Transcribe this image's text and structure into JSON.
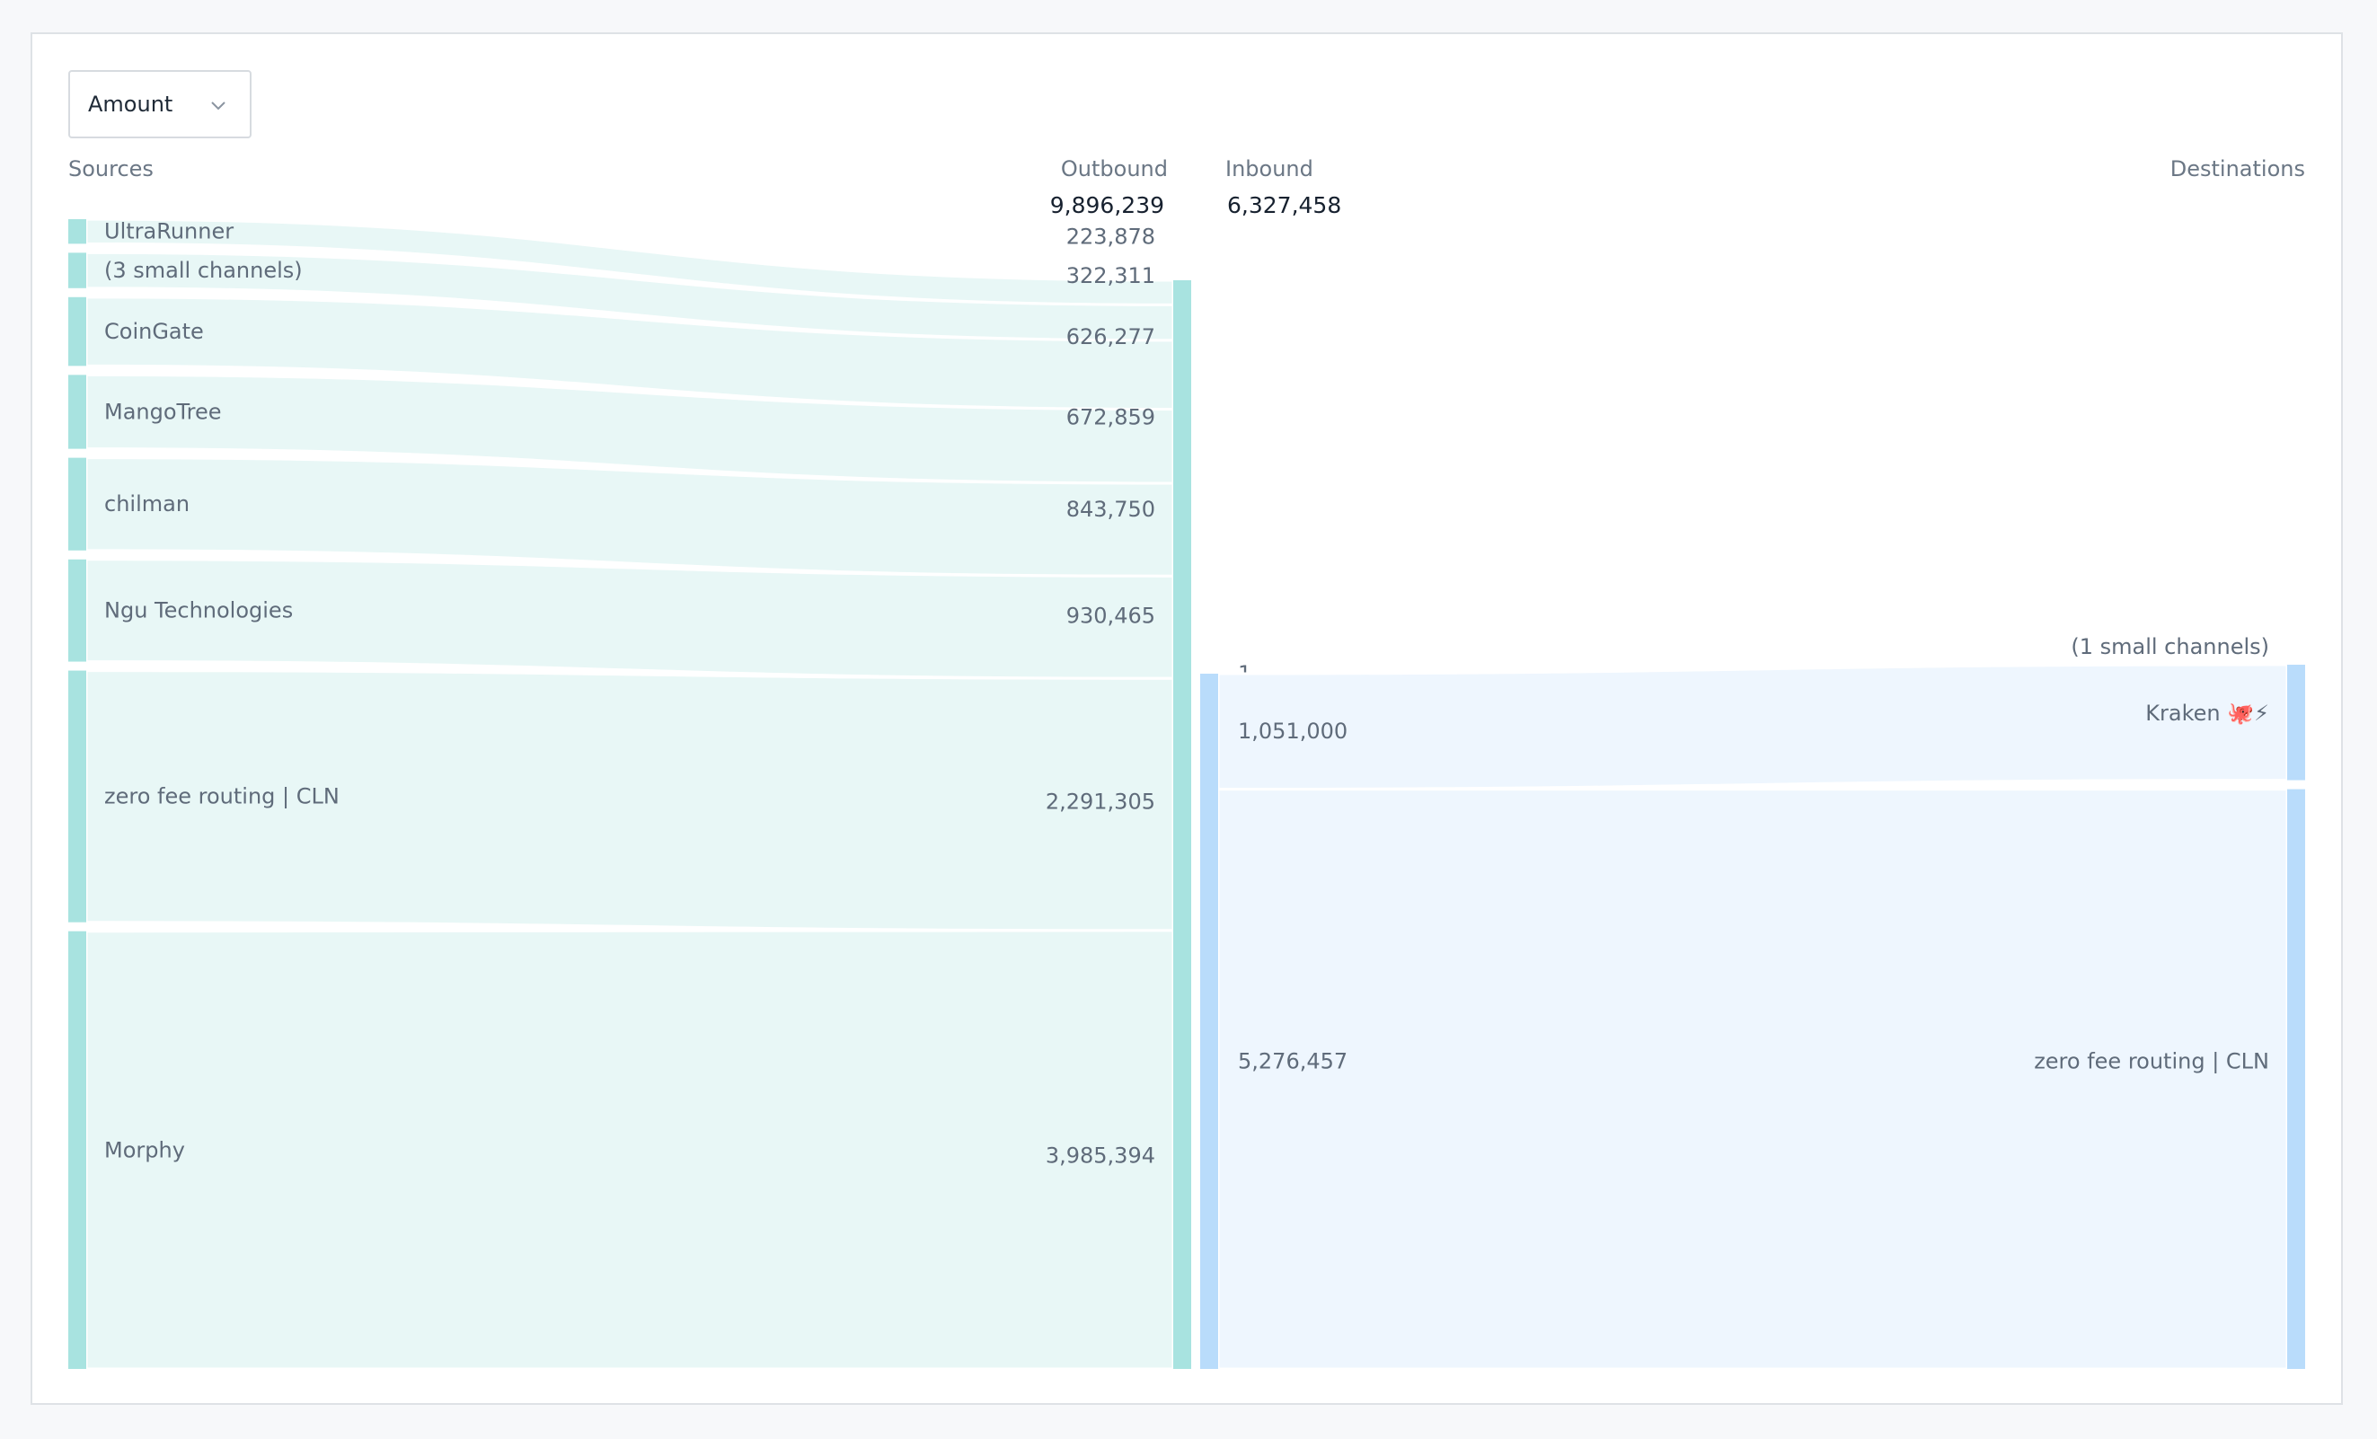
{
  "controls": {
    "metric_select": {
      "value": "Amount",
      "icon": "chevron-down-icon"
    }
  },
  "chart_data": {
    "type": "sankey",
    "headers": {
      "sources": "Sources",
      "outbound": "Outbound",
      "inbound": "Inbound",
      "destinations": "Destinations"
    },
    "totals": {
      "outbound": "9,896,239",
      "inbound": "6,327,458"
    },
    "sources": [
      {
        "name": "UltraRunner",
        "label": "223,878",
        "value": 223878
      },
      {
        "name": "(3 small channels)",
        "label": "322,311",
        "value": 322311
      },
      {
        "name": "CoinGate",
        "label": "626,277",
        "value": 626277
      },
      {
        "name": "MangoTree",
        "label": "672,859",
        "value": 672859
      },
      {
        "name": "chilman",
        "label": "843,750",
        "value": 843750
      },
      {
        "name": "Ngu Technologies",
        "label": "930,465",
        "value": 930465
      },
      {
        "name": "zero fee routing | CLN",
        "label": "2,291,305",
        "value": 2291305
      },
      {
        "name": "Morphy",
        "label": "3,985,394",
        "value": 3985394
      }
    ],
    "destinations": [
      {
        "name": "(1 small channels)",
        "label": "1",
        "value": 1
      },
      {
        "name": "Kraken 🐙⚡",
        "label": "1,051,000",
        "value": 1051000
      },
      {
        "name": "zero fee routing | CLN",
        "label": "5,276,457",
        "value": 5276457
      }
    ],
    "colors": {
      "outbound_node": "#a8e3e0",
      "outbound_flow": "#e8f7f6",
      "inbound_node": "#b9dcfb",
      "inbound_flow": "#eef6fe"
    }
  }
}
